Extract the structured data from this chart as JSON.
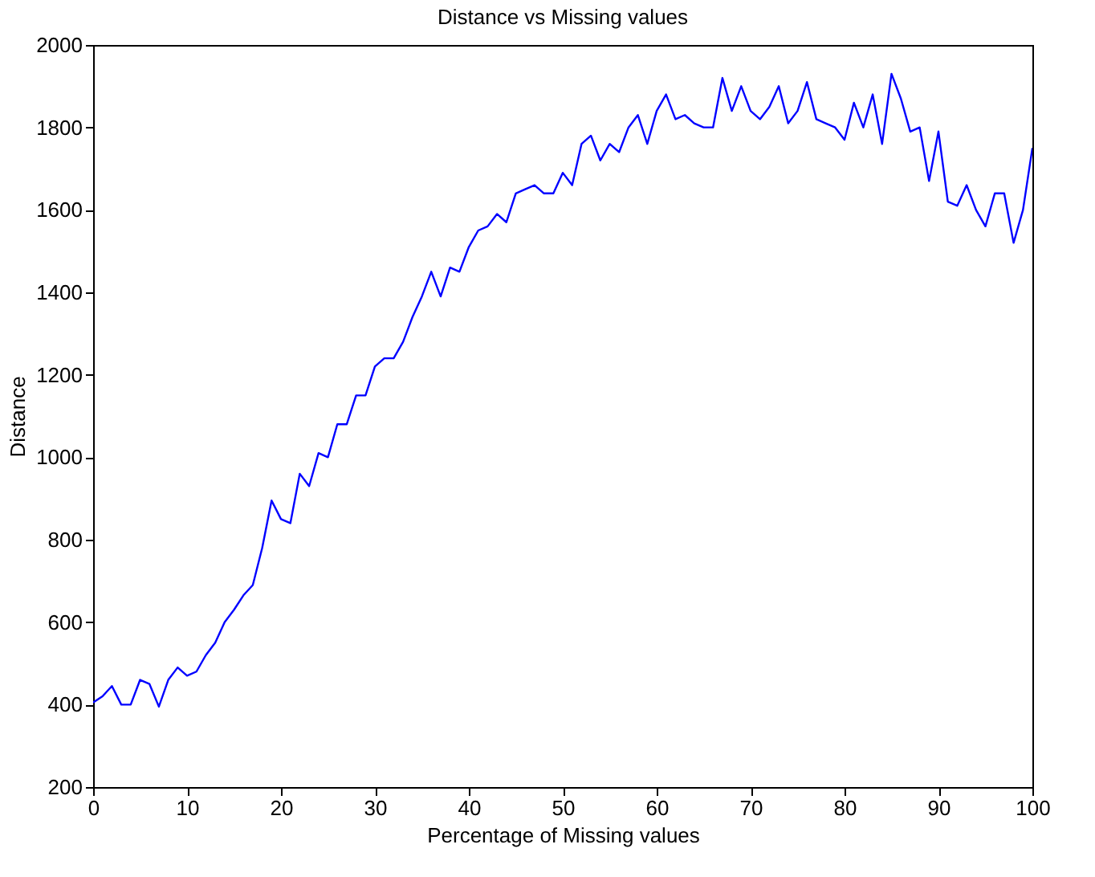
{
  "chart_data": {
    "type": "line",
    "title": "Distance vs Missing values",
    "xlabel": "Percentage of Missing values",
    "ylabel": "Distance",
    "x": [
      0,
      1,
      2,
      3,
      4,
      5,
      6,
      7,
      8,
      9,
      10,
      11,
      12,
      13,
      14,
      15,
      16,
      17,
      18,
      19,
      20,
      21,
      22,
      23,
      24,
      25,
      26,
      27,
      28,
      29,
      30,
      31,
      32,
      33,
      34,
      35,
      36,
      37,
      38,
      39,
      40,
      41,
      42,
      43,
      44,
      45,
      46,
      47,
      48,
      49,
      50,
      51,
      52,
      53,
      54,
      55,
      56,
      57,
      58,
      59,
      60,
      61,
      62,
      63,
      64,
      65,
      66,
      67,
      68,
      69,
      70,
      71,
      72,
      73,
      74,
      75,
      76,
      77,
      78,
      79,
      80,
      81,
      82,
      83,
      84,
      85,
      86,
      87,
      88,
      89,
      90,
      91,
      92,
      93,
      94,
      95,
      96,
      97,
      98,
      99,
      100
    ],
    "series": [
      {
        "color": "#0000ff",
        "values": [
          405,
          420,
          445,
          400,
          400,
          460,
          450,
          395,
          460,
          490,
          470,
          480,
          520,
          550,
          600,
          630,
          665,
          690,
          780,
          895,
          850,
          840,
          960,
          930,
          1010,
          1000,
          1080,
          1080,
          1150,
          1150,
          1220,
          1240,
          1240,
          1280,
          1340,
          1390,
          1450,
          1390,
          1460,
          1450,
          1510,
          1550,
          1560,
          1590,
          1570,
          1640,
          1650,
          1660,
          1640,
          1640,
          1690,
          1660,
          1760,
          1780,
          1720,
          1760,
          1740,
          1800,
          1830,
          1760,
          1840,
          1880,
          1820,
          1830,
          1810,
          1800,
          1800,
          1920,
          1840,
          1900,
          1840,
          1820,
          1850,
          1900,
          1810,
          1840,
          1910,
          1820,
          1810,
          1800,
          1770,
          1860,
          1800,
          1880,
          1760,
          1930,
          1870,
          1790,
          1800,
          1670,
          1790,
          1620,
          1610,
          1660,
          1600,
          1560,
          1640,
          1640,
          1520,
          1600,
          1750
        ]
      }
    ],
    "xlim": [
      0,
      100
    ],
    "ylim": [
      200,
      2000
    ],
    "xticks": [
      0,
      10,
      20,
      30,
      40,
      50,
      60,
      70,
      80,
      90,
      100
    ],
    "yticks": [
      200,
      400,
      600,
      800,
      1000,
      1200,
      1400,
      1600,
      1800,
      2000
    ],
    "grid": false
  }
}
